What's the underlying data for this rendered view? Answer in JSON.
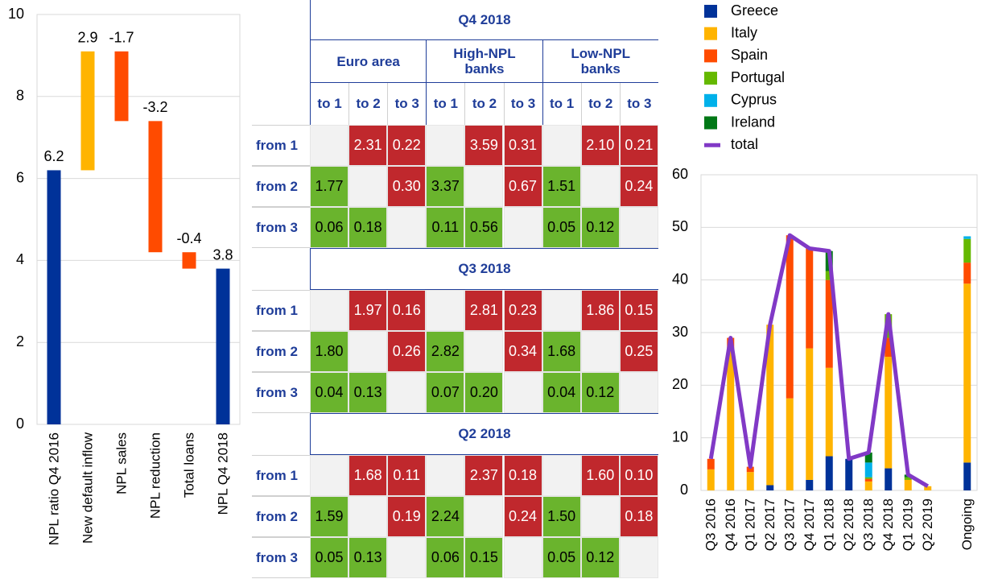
{
  "chart_data": [
    {
      "type": "waterfall",
      "categories": [
        "NPL ratio Q4 2016",
        "New default inflow",
        "NPL sales",
        "NPL reduction",
        "Total loans",
        "NPL Q4 2018"
      ],
      "values": [
        6.2,
        2.9,
        -1.7,
        -3.2,
        -0.4,
        3.8
      ],
      "measure": [
        "absolute",
        "relative",
        "relative",
        "relative",
        "relative",
        "total"
      ],
      "colors": [
        "#003299",
        "#ffb400",
        "#ff4b00",
        "#ff4b00",
        "#ff4b00",
        "#003299"
      ],
      "ylim": [
        0,
        10
      ],
      "yticks": [
        0,
        2,
        4,
        6,
        8,
        10
      ],
      "grid": true
    },
    {
      "type": "stacked_bar",
      "categories": [
        "Q3 2016",
        "Q4 2016",
        "Q1 2017",
        "Q2 2017",
        "Q3 2017",
        "Q4 2017",
        "Q1 2018",
        "Q2 2018",
        "Q3 2018",
        "Q4 2018",
        "Q1 2019",
        "Q2 2019",
        null,
        "Ongoing"
      ],
      "series": [
        {
          "name": "Greece",
          "color": "#003299",
          "values": [
            0,
            0,
            0,
            1,
            0,
            2,
            6.5,
            6,
            0,
            4.2,
            0,
            0,
            null,
            5.3
          ]
        },
        {
          "name": "Italy",
          "color": "#ffb400",
          "values": [
            4,
            27,
            3.5,
            30.5,
            17.5,
            25,
            16.8,
            0,
            1.7,
            21.2,
            2,
            0.8,
            null,
            34
          ]
        },
        {
          "name": "Spain",
          "color": "#ff4b00",
          "values": [
            2,
            2,
            1,
            0,
            31,
            19,
            16.7,
            0,
            0.5,
            3.6,
            0,
            0,
            null,
            4
          ]
        },
        {
          "name": "Portugal",
          "color": "#65b800",
          "values": [
            0,
            0,
            0,
            0,
            0,
            0,
            1.7,
            0,
            0.3,
            4.5,
            0.5,
            0,
            null,
            4.5
          ]
        },
        {
          "name": "Cyprus",
          "color": "#00b1ea",
          "values": [
            0,
            0,
            0,
            0,
            0,
            0,
            0,
            0,
            2.8,
            0,
            0,
            0,
            null,
            0.5
          ]
        },
        {
          "name": "Ireland",
          "color": "#007816",
          "values": [
            0,
            0,
            0,
            0,
            0,
            0,
            3.8,
            0,
            1.9,
            0,
            0.5,
            0,
            null,
            0
          ]
        }
      ],
      "line": {
        "name": "total",
        "color": "#8139c6",
        "values": [
          6,
          29,
          4.5,
          31.5,
          48.5,
          46,
          45.5,
          6,
          7.2,
          33.5,
          3,
          0.8,
          null,
          null
        ]
      },
      "ylim": [
        0,
        60
      ],
      "yticks": [
        0,
        10,
        20,
        30,
        40,
        50,
        60
      ],
      "grid": true,
      "legend": "top-left"
    }
  ],
  "table": {
    "group_headers": [
      "Euro area",
      "High-NPL banks",
      "Low-NPL banks"
    ],
    "column_headers": [
      "to 1",
      "to 2",
      "to 3",
      "to 1",
      "to 2",
      "to 3",
      "to 1",
      "to 2",
      "to 3"
    ],
    "sections": [
      {
        "title": "Q4 2018",
        "rows": [
          {
            "label": "from 1",
            "cells": [
              null,
              "2.31",
              "0.22",
              null,
              "3.59",
              "0.31",
              null,
              "2.10",
              "0.21"
            ]
          },
          {
            "label": "from 2",
            "cells": [
              "1.77",
              null,
              "0.30",
              "3.37",
              null,
              "0.67",
              "1.51",
              null,
              "0.24"
            ]
          },
          {
            "label": "from 3",
            "cells": [
              "0.06",
              "0.18",
              null,
              "0.11",
              "0.56",
              null,
              "0.05",
              "0.12",
              null
            ]
          }
        ]
      },
      {
        "title": "Q3 2018",
        "rows": [
          {
            "label": "from 1",
            "cells": [
              null,
              "1.97",
              "0.16",
              null,
              "2.81",
              "0.23",
              null,
              "1.86",
              "0.15"
            ]
          },
          {
            "label": "from 2",
            "cells": [
              "1.80",
              null,
              "0.26",
              "2.82",
              null,
              "0.34",
              "1.68",
              null,
              "0.25"
            ]
          },
          {
            "label": "from 3",
            "cells": [
              "0.04",
              "0.13",
              null,
              "0.07",
              "0.20",
              null,
              "0.04",
              "0.12",
              null
            ]
          }
        ]
      },
      {
        "title": "Q2 2018",
        "rows": [
          {
            "label": "from 1",
            "cells": [
              null,
              "1.68",
              "0.11",
              null,
              "2.37",
              "0.18",
              null,
              "1.60",
              "0.10"
            ]
          },
          {
            "label": "from 2",
            "cells": [
              "1.59",
              null,
              "0.19",
              "2.24",
              null,
              "0.24",
              "1.50",
              null,
              "0.18"
            ]
          },
          {
            "label": "from 3",
            "cells": [
              "0.05",
              "0.13",
              null,
              "0.06",
              "0.15",
              null,
              "0.05",
              "0.12",
              null
            ]
          }
        ]
      }
    ]
  }
}
